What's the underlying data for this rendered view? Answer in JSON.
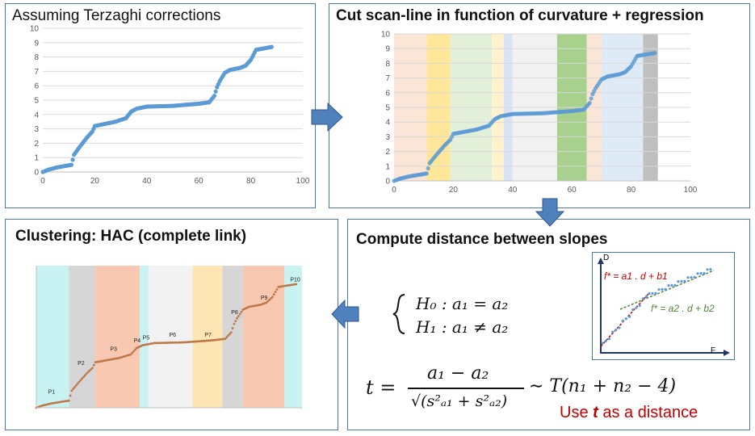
{
  "panels": {
    "p1": {
      "title": "Assuming Terzaghi corrections"
    },
    "p2": {
      "title": "Cut scan-line in function of curvature + regression"
    },
    "p3": {
      "title": "Clustering: HAC (complete link)"
    },
    "p4": {
      "title": "Compute distance between slopes"
    }
  },
  "hypotheses": {
    "h0": "H₀ :   a₁ = a₂",
    "h1": "H₁ :   a₁ ≠ a₂"
  },
  "tstat": {
    "lhs": "t =",
    "numerator": "a₁ − a₂",
    "denominator": "√(s²ₐ₁ + s²ₐ₂)",
    "dist": "∼ T(n₁ + n₂ − 4)"
  },
  "distance_note": {
    "prefix": "Use ",
    "var": "t",
    "suffix": " as a distance"
  },
  "mini": {
    "ylabel": "D",
    "xlabel": "F",
    "eq1": "f* = a1 . d + b1",
    "eq2": "f* = a2 . d + b2"
  },
  "colors": {
    "points": "#5b9bd5",
    "border": "#4a78b0",
    "arrow": "#4f81bd",
    "red": "#c00000",
    "green": "#548235"
  },
  "chart_data": [
    {
      "id": "terzaghi",
      "type": "scatter",
      "title": "Assuming Terzaghi corrections",
      "xlim": [
        0,
        100
      ],
      "ylim": [
        0,
        10
      ],
      "xticks": [
        0,
        20,
        40,
        60,
        80,
        100
      ],
      "yticks": [
        0,
        1,
        2,
        3,
        4,
        5,
        6,
        7,
        8,
        9,
        10
      ],
      "grid": true,
      "curve": [
        [
          0,
          0
        ],
        [
          2,
          0.15
        ],
        [
          5,
          0.3
        ],
        [
          8,
          0.4
        ],
        [
          11,
          0.5
        ],
        [
          12,
          1.2
        ],
        [
          14,
          1.7
        ],
        [
          17,
          2.4
        ],
        [
          19,
          2.8
        ],
        [
          20,
          3.2
        ],
        [
          24,
          3.35
        ],
        [
          28,
          3.5
        ],
        [
          32,
          3.75
        ],
        [
          34,
          4.2
        ],
        [
          36,
          4.4
        ],
        [
          40,
          4.55
        ],
        [
          50,
          4.6
        ],
        [
          60,
          4.75
        ],
        [
          64,
          4.85
        ],
        [
          66,
          5.3
        ],
        [
          67,
          5.9
        ],
        [
          68,
          6.3
        ],
        [
          70,
          6.9
        ],
        [
          72,
          7.1
        ],
        [
          76,
          7.25
        ],
        [
          78,
          7.4
        ],
        [
          80,
          7.8
        ],
        [
          82,
          8.5
        ],
        [
          85,
          8.6
        ],
        [
          88,
          8.7
        ]
      ]
    },
    {
      "id": "segments",
      "type": "scatter",
      "title": "Cut scan-line in function of curvature + regression",
      "xlim": [
        0,
        100
      ],
      "ylim": [
        0,
        10
      ],
      "xticks": [
        0,
        20,
        40,
        60,
        80,
        100
      ],
      "yticks": [
        0,
        1,
        2,
        3,
        4,
        5,
        6,
        7,
        8,
        9,
        10
      ],
      "grid": true,
      "bands": [
        {
          "x0": 0,
          "x1": 11,
          "color": "#fbe5d6"
        },
        {
          "x0": 11,
          "x1": 19,
          "color": "#ffe699"
        },
        {
          "x0": 19,
          "x1": 33,
          "color": "#e2f0d9"
        },
        {
          "x0": 33,
          "x1": 37,
          "color": "#fff2cc"
        },
        {
          "x0": 37,
          "x1": 40,
          "color": "#dae3f3"
        },
        {
          "x0": 40,
          "x1": 55,
          "color": "#f2f2f2"
        },
        {
          "x0": 55,
          "x1": 65,
          "color": "#a9d18e"
        },
        {
          "x0": 65,
          "x1": 70,
          "color": "#fbe5d6"
        },
        {
          "x0": 70,
          "x1": 84,
          "color": "#deebf7"
        },
        {
          "x0": 84,
          "x1": 89,
          "color": "#bfbfbf"
        }
      ],
      "curve": [
        [
          0,
          0
        ],
        [
          2,
          0.15
        ],
        [
          5,
          0.3
        ],
        [
          8,
          0.4
        ],
        [
          11,
          0.5
        ],
        [
          12,
          1.2
        ],
        [
          14,
          1.7
        ],
        [
          17,
          2.4
        ],
        [
          19,
          2.8
        ],
        [
          20,
          3.2
        ],
        [
          24,
          3.35
        ],
        [
          28,
          3.5
        ],
        [
          32,
          3.75
        ],
        [
          34,
          4.2
        ],
        [
          36,
          4.4
        ],
        [
          40,
          4.55
        ],
        [
          50,
          4.6
        ],
        [
          60,
          4.75
        ],
        [
          64,
          4.85
        ],
        [
          66,
          5.3
        ],
        [
          67,
          5.9
        ],
        [
          68,
          6.3
        ],
        [
          70,
          6.9
        ],
        [
          72,
          7.1
        ],
        [
          76,
          7.25
        ],
        [
          78,
          7.4
        ],
        [
          80,
          7.8
        ],
        [
          82,
          8.5
        ],
        [
          85,
          8.6
        ],
        [
          88,
          8.7
        ]
      ]
    },
    {
      "id": "clusters",
      "type": "scatter",
      "title": "Clustering: HAC (complete link)",
      "xlim": [
        0,
        90
      ],
      "ylim": [
        0,
        10
      ],
      "bands": [
        {
          "x0": 0,
          "x1": 11,
          "color": "#c9f3f3"
        },
        {
          "x0": 11,
          "x1": 20,
          "color": "#d6d6d6"
        },
        {
          "x0": 20,
          "x1": 35,
          "color": "#f8c9b0"
        },
        {
          "x0": 35,
          "x1": 38,
          "color": "#c9f3f3"
        },
        {
          "x0": 38,
          "x1": 53,
          "color": "#f2f2f2"
        },
        {
          "x0": 53,
          "x1": 63,
          "color": "#fde5b4"
        },
        {
          "x0": 63,
          "x1": 70,
          "color": "#d6d6d6"
        },
        {
          "x0": 70,
          "x1": 84,
          "color": "#f8c9b0"
        },
        {
          "x0": 84,
          "x1": 90,
          "color": "#c9f3f3"
        }
      ],
      "labels": [
        {
          "text": "P1",
          "x": 4,
          "y": 1.0
        },
        {
          "text": "P2",
          "x": 14,
          "y": 3.0
        },
        {
          "text": "P3",
          "x": 25,
          "y": 4.0
        },
        {
          "text": "P4",
          "x": 33,
          "y": 4.6
        },
        {
          "text": "P5",
          "x": 36,
          "y": 4.8
        },
        {
          "text": "P6",
          "x": 45,
          "y": 5.0
        },
        {
          "text": "P7",
          "x": 57,
          "y": 5.0
        },
        {
          "text": "P8",
          "x": 66,
          "y": 6.6
        },
        {
          "text": "P9",
          "x": 76,
          "y": 7.6
        },
        {
          "text": "P10",
          "x": 86,
          "y": 8.9
        }
      ],
      "curve": [
        [
          0,
          0
        ],
        [
          2,
          0.15
        ],
        [
          5,
          0.3
        ],
        [
          8,
          0.4
        ],
        [
          11,
          0.5
        ],
        [
          12,
          1.2
        ],
        [
          14,
          1.7
        ],
        [
          17,
          2.4
        ],
        [
          19,
          2.8
        ],
        [
          20,
          3.2
        ],
        [
          24,
          3.35
        ],
        [
          28,
          3.5
        ],
        [
          32,
          3.75
        ],
        [
          34,
          4.2
        ],
        [
          36,
          4.4
        ],
        [
          40,
          4.55
        ],
        [
          50,
          4.6
        ],
        [
          60,
          4.75
        ],
        [
          64,
          4.85
        ],
        [
          66,
          5.3
        ],
        [
          67,
          5.9
        ],
        [
          68,
          6.3
        ],
        [
          70,
          6.9
        ],
        [
          72,
          7.1
        ],
        [
          76,
          7.25
        ],
        [
          78,
          7.4
        ],
        [
          80,
          7.8
        ],
        [
          82,
          8.5
        ],
        [
          85,
          8.6
        ],
        [
          88,
          8.7
        ]
      ]
    }
  ]
}
